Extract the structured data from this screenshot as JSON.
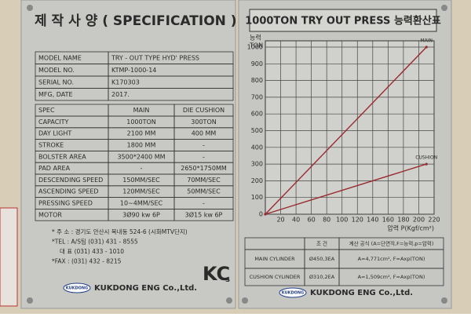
{
  "left": {
    "title": "제 작 사 양 ( SPECIFICATION )",
    "info": {
      "rows": [
        [
          "MODEL NAME",
          "TRY - OUT TYPE HYD' PRESS"
        ],
        [
          "MODEL NO.",
          "KTMP-1000-14"
        ],
        [
          "SERIAL NO.",
          "K170303"
        ],
        [
          "MFG, DATE",
          "2017."
        ]
      ]
    },
    "spec": {
      "header": [
        "SPEC",
        "MAIN",
        "DIE CUSHION"
      ],
      "rows": [
        [
          "CAPACITY",
          "1000TON",
          "300TON"
        ],
        [
          "DAY LIGHT",
          "2100 MM",
          "400 MM"
        ],
        [
          "STROKE",
          "1800 MM",
          "-"
        ],
        [
          "BOLSTER AREA",
          "3500*2400 MM",
          "-"
        ],
        [
          "PAD AREA",
          "-",
          "2650*1750MM"
        ],
        [
          "DESCENDING SPEED",
          "150MM/SEC",
          "70MM/SEC"
        ],
        [
          "ASCENDING SPEED",
          "120MM/SEC",
          "50MM/SEC"
        ],
        [
          "PRESSING SPEED",
          "10~4MM/SEC",
          "-"
        ],
        [
          "MOTOR",
          "3Ø90 kw 6P",
          "3Ø15 kw 6P"
        ]
      ]
    },
    "address": [
      "* 주 소 : 경기도 안산시 목내동 524-6 (시화MTV단지)",
      "*TEL : A/S팀 (031) 431 - 8555",
      "대 표 (031) 433 - 1010",
      "*FAX : (031) 432 - 8215"
    ],
    "logo": "KUKDONG",
    "company": "KUKDONG ENG Co.,Ltd.",
    "mark": "KC",
    "mark_sub": "s"
  },
  "right": {
    "title": "1000TON TRY OUT PRESS 능력환산표",
    "chart": {
      "type": "line",
      "y_label_top": "능력",
      "y_label": "TON",
      "x_label": "압력 P(Kgf/cm²)",
      "x": [
        0,
        210
      ],
      "series": [
        {
          "name": "MAIN",
          "color": "#9a2a2e",
          "values": [
            0,
            1000
          ]
        },
        {
          "name": "CUSHION",
          "color": "#9a2a2e",
          "values": [
            0,
            300
          ]
        }
      ],
      "xlim": [
        0,
        220
      ],
      "ylim": [
        0,
        1000
      ],
      "xticks": [
        20,
        40,
        60,
        80,
        100,
        120,
        140,
        160,
        180,
        200,
        220
      ],
      "yticks": [
        0,
        100,
        200,
        300,
        400,
        500,
        600,
        700,
        800,
        900,
        1000
      ],
      "grid": true
    },
    "formula": {
      "header": [
        "조 건",
        "계산 공식 (A=단면적,F=능력,p=압력)"
      ],
      "rows": [
        [
          "MAIN CYLINDER",
          "Ø450,3EA",
          "A=4,771cm², F=Axp(TON)"
        ],
        [
          "CUSHION CYLINDER",
          "Ø310,2EA",
          "A=1,509cm², F=Axp(TON)"
        ]
      ]
    },
    "logo": "KUKDONG",
    "company": "KUKDONG ENG Co.,Ltd."
  }
}
